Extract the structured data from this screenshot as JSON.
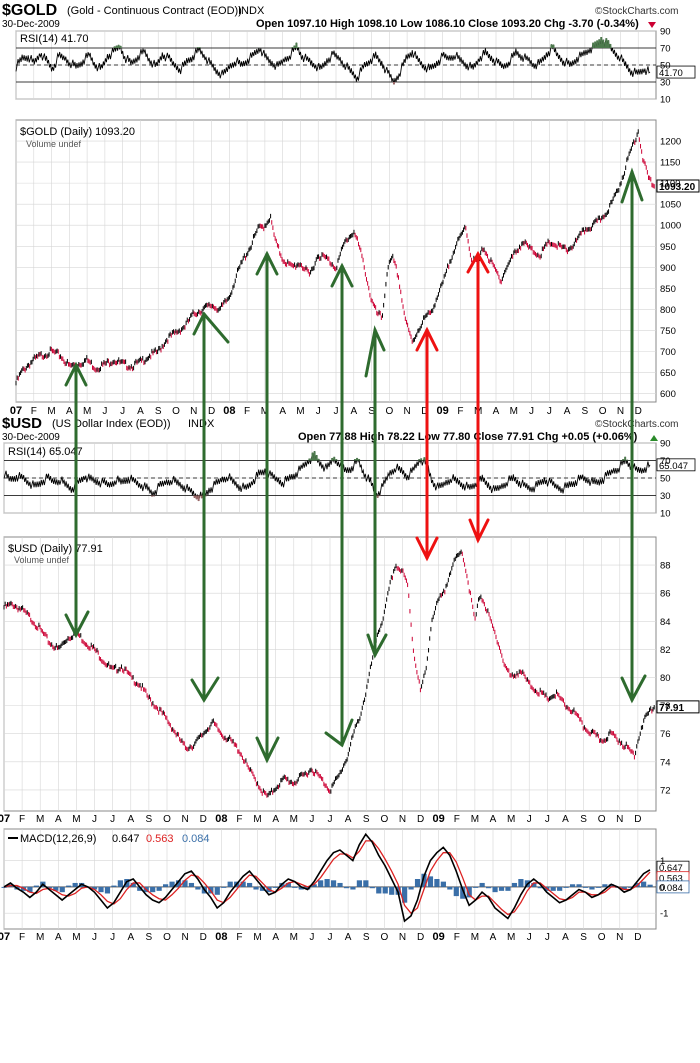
{
  "gold_header": {
    "symbol": "$GOLD",
    "name": "(Gold - Continuous Contract (EOD))",
    "exchange": "INDX",
    "date": "30-Dec-2009",
    "ohlc_text": "Open 1097.10  High 1098.10  Low 1086.10  Close 1093.20  Chg -3.70 (-0.34%)",
    "watermark": "©StockCharts.com"
  },
  "usd_header": {
    "date": "30-Dec-2009",
    "symbol": "$USD",
    "name": "(US Dollar Index (EOD))",
    "exchange": "INDX",
    "ohlc_text": "Open 77.88  High 78.22  Low 77.80  Close 77.91  Chg +0.05 (+0.06%)",
    "watermark": "©StockCharts.com"
  },
  "months": [
    "07",
    "F",
    "M",
    "A",
    "M",
    "J",
    "J",
    "A",
    "S",
    "O",
    "N",
    "D",
    "08",
    "F",
    "M",
    "A",
    "M",
    "J",
    "J",
    "A",
    "S",
    "O",
    "N",
    "D",
    "09",
    "F",
    "M",
    "A",
    "M",
    "J",
    "J",
    "A",
    "S",
    "O",
    "N",
    "D"
  ],
  "colors": {
    "up": "#000000",
    "down": "#cc0033",
    "green_arrow": "#2e6b2e",
    "red_arrow": "#ee1111",
    "macd_signal": "#dd2222",
    "histogram": "#3a6fa8",
    "rsi_fill": "#4d7a4d",
    "grid": "#d6d6d6"
  },
  "chart_data": [
    {
      "type": "line",
      "title": "RSI(14) 41.70",
      "panel": "gold-rsi",
      "ylim": [
        10,
        90
      ],
      "yticks": [
        10,
        30,
        50,
        70,
        90
      ],
      "ref_lines": [
        30,
        50,
        70
      ],
      "last_value_label": "41.70",
      "series": [
        {
          "values": [
            48,
            58,
            60,
            52,
            64,
            55,
            45,
            60,
            58,
            52,
            48,
            55,
            62,
            50,
            45,
            60,
            65,
            72,
            58,
            52,
            60,
            66,
            55,
            48,
            62,
            58,
            50,
            45,
            54,
            60,
            68,
            60,
            50,
            42,
            38,
            48,
            55,
            50,
            56,
            62,
            70,
            58,
            52,
            48,
            56,
            62,
            72,
            60,
            55,
            50,
            45,
            55,
            62,
            58,
            50,
            42,
            35,
            48,
            55,
            60,
            52,
            40,
            30,
            42,
            58,
            66,
            55,
            48,
            45,
            52,
            60,
            58,
            62,
            55,
            50,
            46,
            58,
            64,
            58,
            52,
            48,
            55,
            65,
            60,
            56,
            50,
            52,
            62,
            70,
            60,
            54,
            50,
            58,
            62,
            68,
            72,
            80,
            75,
            66,
            60,
            50,
            42,
            40,
            45,
            41.7
          ]
        }
      ]
    },
    {
      "type": "line",
      "title": "$GOLD (Daily) 1093.20",
      "panel": "gold-price",
      "ylim": [
        580,
        1250
      ],
      "yticks": [
        600,
        650,
        700,
        750,
        800,
        850,
        900,
        950,
        1000,
        1050,
        1100,
        1150,
        1200
      ],
      "last_value_label": "1093.20",
      "x": [
        0,
        0.3,
        0.6,
        1.0,
        1.4,
        2.0,
        2.5,
        3.0,
        3.5,
        4.0,
        4.5,
        5.0,
        5.5,
        6.0,
        6.5,
        7.0,
        7.5,
        8.0,
        8.5,
        9.0,
        9.5,
        10.0,
        10.5,
        11.0,
        11.5,
        12.0,
        12.4,
        12.8,
        13.2,
        13.6,
        14.0,
        14.3,
        14.6,
        15.0,
        15.5,
        16.0,
        16.5,
        17.0,
        17.5,
        18.0,
        18.5,
        19.0,
        19.3,
        19.6,
        20.0,
        20.3,
        20.6,
        20.9,
        21.2,
        21.5,
        21.8,
        22.0,
        22.3,
        22.6,
        23.0,
        23.3,
        23.6,
        24.0,
        24.3,
        24.6,
        25.0,
        25.3,
        25.6,
        26.0,
        26.3,
        26.6,
        27.0,
        27.3,
        27.6,
        28.0,
        28.5,
        29.0,
        29.5,
        30.0,
        30.5,
        31.0,
        31.5,
        32.0,
        32.5,
        33.0,
        33.5,
        34.0,
        34.3,
        34.6,
        35.0,
        35.3,
        35.6,
        35.9
      ],
      "y": [
        625,
        650,
        665,
        680,
        690,
        700,
        690,
        665,
        670,
        680,
        660,
        670,
        680,
        670,
        665,
        675,
        690,
        700,
        730,
        745,
        760,
        790,
        800,
        810,
        800,
        830,
        880,
        920,
        950,
        990,
        1000,
        1020,
        960,
        920,
        900,
        910,
        880,
        930,
        920,
        900,
        960,
        985,
        950,
        900,
        820,
        790,
        780,
        900,
        920,
        880,
        800,
        760,
        720,
        750,
        780,
        790,
        820,
        860,
        900,
        940,
        970,
        1000,
        920,
        910,
        950,
        920,
        890,
        870,
        900,
        930,
        960,
        940,
        930,
        960,
        950,
        940,
        960,
        990,
        1000,
        1020,
        1050,
        1100,
        1140,
        1180,
        1225,
        1150,
        1110,
        1093.2
      ]
    },
    {
      "type": "line",
      "title": "RSI(14) 65.047",
      "panel": "usd-rsi",
      "ylim": [
        10,
        90
      ],
      "yticks": [
        10,
        30,
        50,
        70,
        90
      ],
      "ref_lines": [
        30,
        50,
        70
      ],
      "last_value_label": "65.047",
      "series": [
        {
          "values": [
            55,
            48,
            52,
            50,
            45,
            40,
            45,
            50,
            46,
            48,
            42,
            38,
            45,
            52,
            48,
            46,
            44,
            42,
            48,
            45,
            50,
            46,
            42,
            38,
            32,
            40,
            45,
            48,
            44,
            40,
            35,
            30,
            28,
            36,
            42,
            48,
            52,
            45,
            40,
            38,
            46,
            54,
            58,
            52,
            48,
            45,
            50,
            55,
            62,
            70,
            75,
            66,
            60,
            72,
            68,
            58,
            62,
            70,
            55,
            45,
            30,
            40,
            55,
            62,
            58,
            52,
            60,
            72,
            66,
            45,
            38,
            44,
            50,
            46,
            42,
            38,
            44,
            48,
            42,
            35,
            40,
            46,
            50,
            45,
            40,
            38,
            42,
            48,
            44,
            40,
            38,
            42,
            46,
            50,
            48,
            44,
            46,
            52,
            58,
            62,
            70,
            64,
            58,
            60,
            65.05
          ]
        }
      ]
    },
    {
      "type": "line",
      "title": "$USD (Daily) 77.91",
      "panel": "usd-price",
      "ylim": [
        70.5,
        90
      ],
      "yticks": [
        72,
        74,
        76,
        78,
        80,
        82,
        84,
        86,
        88
      ],
      "last_value_label": "77.91",
      "x": [
        0,
        0.5,
        1.0,
        1.5,
        2.0,
        2.5,
        3.0,
        3.5,
        4.0,
        4.5,
        5.0,
        5.5,
        6.0,
        6.5,
        7.0,
        7.5,
        8.0,
        8.5,
        9.0,
        9.5,
        10.0,
        10.5,
        11.0,
        11.5,
        12.0,
        12.5,
        13.0,
        13.5,
        14.0,
        14.3,
        14.6,
        15.0,
        15.5,
        16.0,
        16.5,
        17.0,
        17.5,
        18.0,
        18.5,
        19.0,
        19.3,
        19.6,
        20.0,
        20.3,
        20.6,
        21.0,
        21.3,
        21.6,
        22.0,
        22.3,
        22.6,
        23.0,
        23.3,
        23.6,
        24.0,
        24.3,
        24.6,
        25.0,
        25.3,
        25.6,
        26.0,
        26.3,
        26.6,
        27.0,
        27.3,
        27.6,
        28.0,
        28.5,
        29.0,
        29.5,
        30.0,
        30.5,
        31.0,
        31.5,
        32.0,
        32.5,
        33.0,
        33.5,
        34.0,
        34.4,
        34.8,
        35.2,
        35.6,
        35.9
      ],
      "y": [
        85,
        85.2,
        84.8,
        84.2,
        83.4,
        82.5,
        82.0,
        82.8,
        83.2,
        82.5,
        82.0,
        81.2,
        80.5,
        80.8,
        80.0,
        79.5,
        78.5,
        77.8,
        77.0,
        76.0,
        75.0,
        75.2,
        76.0,
        76.8,
        76.0,
        75.5,
        74.8,
        73.5,
        72.5,
        71.8,
        71.5,
        72.2,
        72.8,
        72.5,
        73.0,
        73.5,
        72.8,
        72.0,
        73.0,
        74.5,
        76.0,
        77.0,
        79.0,
        81.0,
        83.0,
        84.5,
        86.5,
        88.0,
        87.5,
        86.5,
        82.0,
        79.0,
        80.5,
        84.0,
        85.5,
        86.0,
        87.5,
        88.5,
        89.0,
        87.0,
        84.0,
        86.0,
        85.0,
        83.5,
        82.5,
        81.0,
        80.0,
        80.5,
        79.5,
        79.0,
        78.5,
        78.8,
        78.0,
        77.5,
        76.5,
        76.0,
        75.5,
        76.0,
        75.5,
        75.0,
        74.5,
        76.5,
        77.5,
        77.91
      ]
    },
    {
      "type": "area",
      "title": "MACD(12,26,9) 0.647, 0.563, 0.084",
      "panel": "usd-macd",
      "ylim": [
        -1.6,
        2.2
      ],
      "yticks": [
        -1,
        0,
        1
      ],
      "legend": [
        "MACD(12,26,9)",
        "0.647",
        "0.563",
        "0.084"
      ],
      "last_value_labels": [
        "0.647",
        "0.563",
        "0.084"
      ],
      "series": [
        {
          "name": "MACD(12,26,9)",
          "values": [
            0,
            0.15,
            -0.05,
            -0.2,
            -0.4,
            -0.2,
            0.1,
            -0.1,
            -0.3,
            -0.5,
            -0.3,
            -0.1,
            0.1,
            0.0,
            -0.2,
            -0.5,
            -0.8,
            -0.6,
            -0.2,
            0.2,
            0.3,
            0.0,
            -0.3,
            -0.5,
            -0.6,
            -0.4,
            -0.1,
            0.2,
            0.5,
            0.6,
            0.3,
            -0.1,
            -0.4,
            -0.8,
            -0.6,
            -0.2,
            0.1,
            0.4,
            0.6,
            0.3,
            0.0,
            -0.3,
            -0.2,
            0.1,
            0.3,
            0.2,
            0.0,
            -0.1,
            0.2,
            0.6,
            1.0,
            1.3,
            1.4,
            1.2,
            1.0,
            1.6,
            2.0,
            1.7,
            1.2,
            0.8,
            0.3,
            -0.2,
            -1.3,
            -1.1,
            -0.5,
            0.4,
            1.0,
            1.3,
            1.5,
            1.2,
            0.6,
            -0.1,
            -0.7,
            -0.5,
            -0.2,
            -0.4,
            -0.8,
            -1.0,
            -1.2,
            -0.8,
            -0.3,
            0.1,
            0.3,
            0.1,
            -0.2,
            -0.4,
            -0.6,
            -0.5,
            -0.3,
            -0.1,
            -0.2,
            -0.4,
            -0.3,
            -0.1,
            0.1,
            0.0,
            -0.2,
            -0.1,
            0.2,
            0.5,
            0.647
          ]
        },
        {
          "name": "0.563",
          "values": [
            0,
            0.05,
            0.05,
            -0.05,
            -0.2,
            -0.25,
            -0.1,
            -0.05,
            -0.15,
            -0.3,
            -0.35,
            -0.25,
            -0.05,
            0.0,
            -0.1,
            -0.3,
            -0.55,
            -0.65,
            -0.45,
            -0.1,
            0.15,
            0.15,
            -0.1,
            -0.3,
            -0.45,
            -0.5,
            -0.3,
            -0.05,
            0.25,
            0.45,
            0.4,
            0.15,
            -0.15,
            -0.5,
            -0.6,
            -0.4,
            -0.1,
            0.2,
            0.45,
            0.4,
            0.15,
            -0.1,
            -0.2,
            -0.05,
            0.15,
            0.2,
            0.1,
            0.0,
            0.1,
            0.35,
            0.7,
            1.05,
            1.25,
            1.25,
            1.1,
            1.35,
            1.75,
            1.75,
            1.45,
            1.05,
            0.6,
            0.1,
            -0.7,
            -1.0,
            -0.8,
            -0.1,
            0.6,
            1.0,
            1.3,
            1.3,
            0.95,
            0.35,
            -0.3,
            -0.5,
            -0.35,
            -0.35,
            -0.6,
            -0.85,
            -1.05,
            -0.95,
            -0.6,
            -0.15,
            0.15,
            0.15,
            -0.05,
            -0.25,
            -0.45,
            -0.5,
            -0.4,
            -0.2,
            -0.2,
            -0.3,
            -0.3,
            -0.2,
            0.0,
            0.0,
            -0.1,
            -0.1,
            0.05,
            0.3,
            0.563
          ]
        }
      ]
    }
  ]
}
